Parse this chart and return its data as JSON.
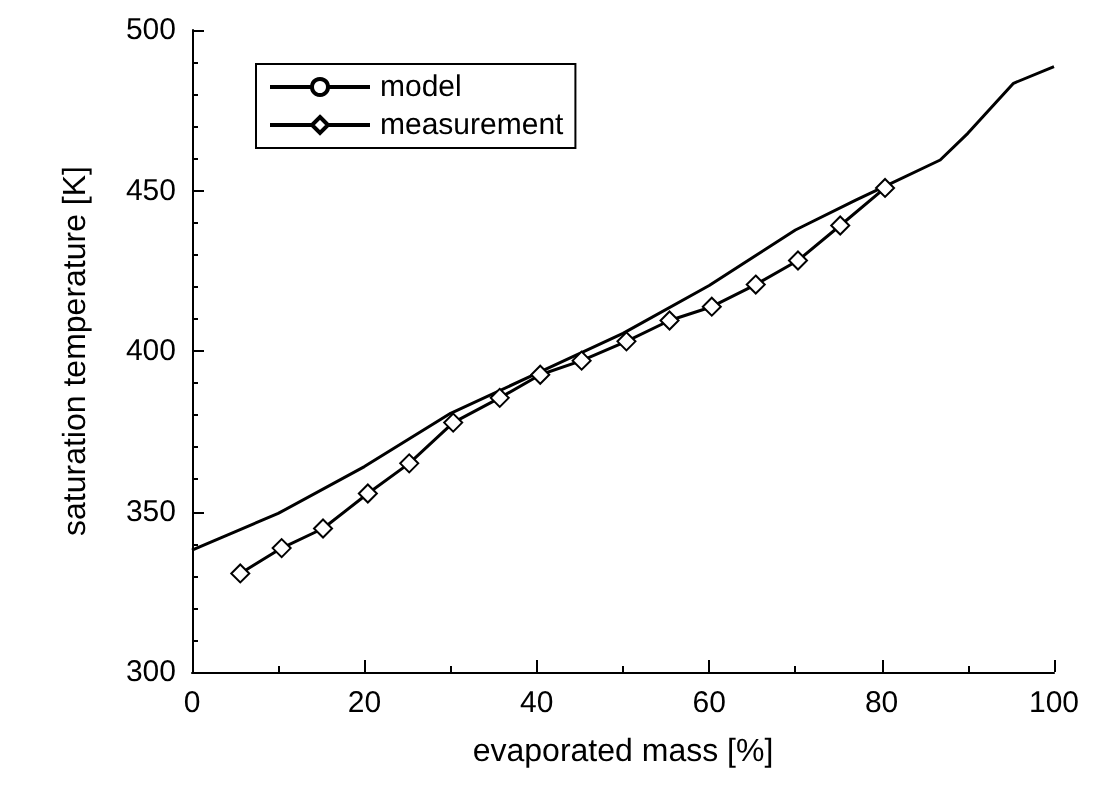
{
  "chart_data": {
    "type": "line",
    "xlabel": "evaporated mass [%]",
    "ylabel": "saturation temperature [K]",
    "xlim": [
      0,
      100
    ],
    "xticks": [
      0,
      20,
      40,
      60,
      80,
      100
    ],
    "ylim": [
      300,
      500
    ],
    "yticks": [
      300,
      350,
      400,
      450,
      500
    ],
    "grid": false,
    "legend": "top left",
    "series": [
      {
        "name": "model",
        "color": "#000000",
        "marker": "none",
        "x": [
          0,
          10,
          20,
          30,
          40,
          50,
          60,
          70,
          77,
          80,
          86.8,
          90,
          95.3,
          100
        ],
        "values": [
          338,
          349.4,
          364,
          380.6,
          393,
          405.5,
          420.4,
          437.7,
          447,
          450.8,
          459.5,
          467.8,
          483.4,
          488.6
        ]
      },
      {
        "name": "measurement",
        "color": "#000000",
        "marker": "diamond",
        "x": [
          5.6,
          10.4,
          15.2,
          20.4,
          25.2,
          30.3,
          35.7,
          40.4,
          45.2,
          50.4,
          55.4,
          60.3,
          65.4,
          70.3,
          75.2,
          80.4
        ],
        "values": [
          330.7,
          338.6,
          344.7,
          355.6,
          365,
          377.7,
          385.4,
          392.6,
          397,
          403,
          409.5,
          413.8,
          420.7,
          428.2,
          439.1,
          450.8
        ]
      }
    ]
  }
}
